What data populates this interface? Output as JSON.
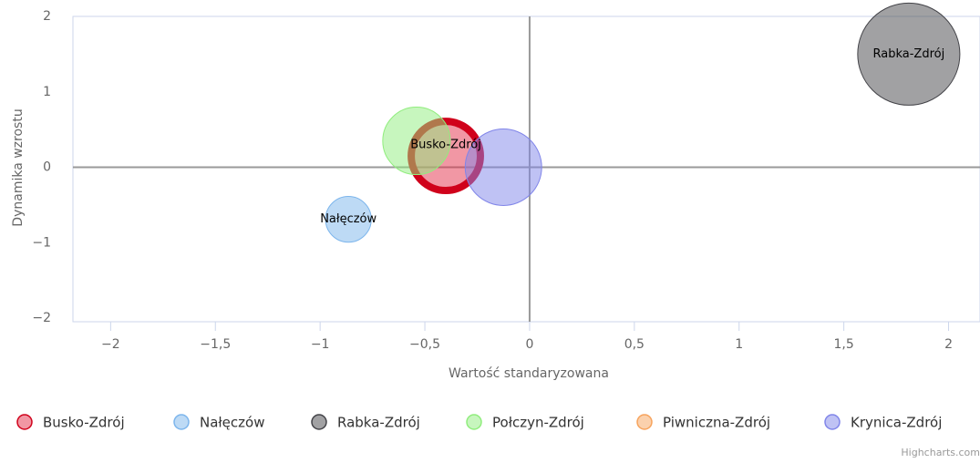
{
  "chart_data": {
    "type": "bubble",
    "x_label": "Wartość standaryzowana",
    "y_label": "Dynamika wzrostu",
    "xlim": [
      -2.18,
      2.15
    ],
    "ylim": [
      -2,
      2
    ],
    "xticks": [
      {
        "value": -2,
        "label": "−2"
      },
      {
        "value": -1.5,
        "label": "−1,5"
      },
      {
        "value": -1,
        "label": "−1"
      },
      {
        "value": -0.5,
        "label": "−0,5"
      },
      0,
      {
        "value": 0.5,
        "label": "0,5"
      },
      1,
      {
        "value": 1.5,
        "label": "1,5"
      },
      2
    ],
    "yticks": [
      {
        "value": -2,
        "label": "−2"
      },
      {
        "value": -1,
        "label": "−1"
      },
      0,
      1,
      2
    ],
    "selected_series": 0,
    "credit": "Highcharts.com",
    "series": [
      {
        "name": "Busko-Zdrój",
        "color": "#e4304a",
        "x": [
          -0.4
        ],
        "y": [
          0.15
        ],
        "z": [
          14.4
        ]
      },
      {
        "name": "Nałęczów",
        "color": "#7cb5ec",
        "x": [
          -0.865
        ],
        "y": [
          -0.69
        ],
        "z": [
          6.3
        ]
      },
      {
        "name": "Rabka-Zdrój",
        "color": "#434348",
        "x": [
          1.81
        ],
        "y": [
          1.5
        ],
        "z": [
          31.4
        ]
      },
      {
        "name": "Połczyn-Zdrój",
        "color": "#90ed7d",
        "x": [
          -0.54
        ],
        "y": [
          0.35
        ],
        "z": [
          13.7
        ]
      },
      {
        "name": "Piwniczna-Zdrój",
        "color": "#f7a35c",
        "x": [],
        "y": [],
        "z": []
      },
      {
        "name": "Krynica-Zdrój",
        "color": "#8085e9",
        "x": [
          -0.125
        ],
        "y": [
          0.0
        ],
        "z": [
          17.6
        ]
      }
    ]
  }
}
